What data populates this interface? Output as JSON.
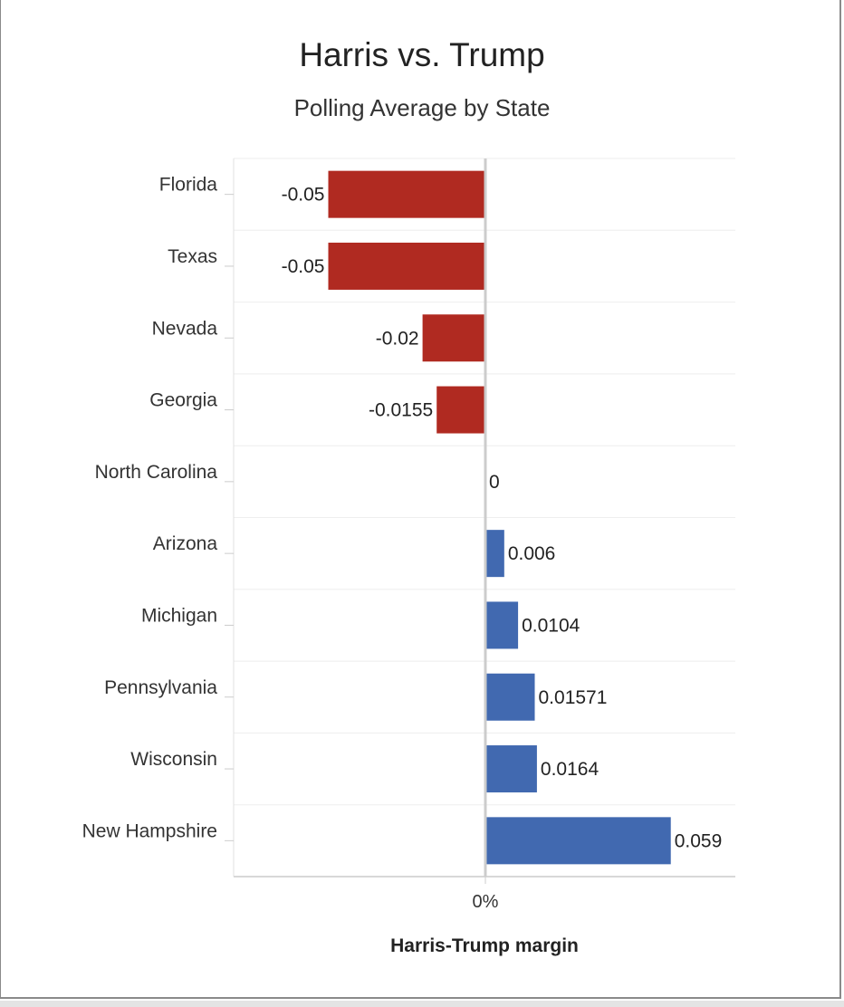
{
  "chart_data": {
    "type": "bar",
    "orientation": "horizontal",
    "title": "Harris vs. Trump",
    "subtitle": "Polling Average by State",
    "xlabel": "Harris-Trump margin",
    "ylabel": "",
    "categories": [
      "Florida",
      "Texas",
      "Nevada",
      "Georgia",
      "North Carolina",
      "Arizona",
      "Michigan",
      "Pennsylvania",
      "Wisconsin",
      "New Hampshire"
    ],
    "values": [
      -0.05,
      -0.05,
      -0.02,
      -0.0155,
      0,
      0.006,
      0.0104,
      0.01571,
      0.0164,
      0.059
    ],
    "value_labels": [
      "-0.05",
      "-0.05",
      "-0.02",
      "-0.0155",
      "0",
      "0.006",
      "0.0104",
      "0.01571",
      "0.0164",
      "0.059"
    ],
    "x_ticks": [
      {
        "value": 0,
        "label": "0%"
      }
    ],
    "xlim": [
      -0.08,
      0.08
    ],
    "grid": true,
    "colors": {
      "negative": "#b02a21",
      "positive": "#4169b0",
      "zero_line": "#cccccc",
      "grid": "#eeeeee"
    }
  }
}
